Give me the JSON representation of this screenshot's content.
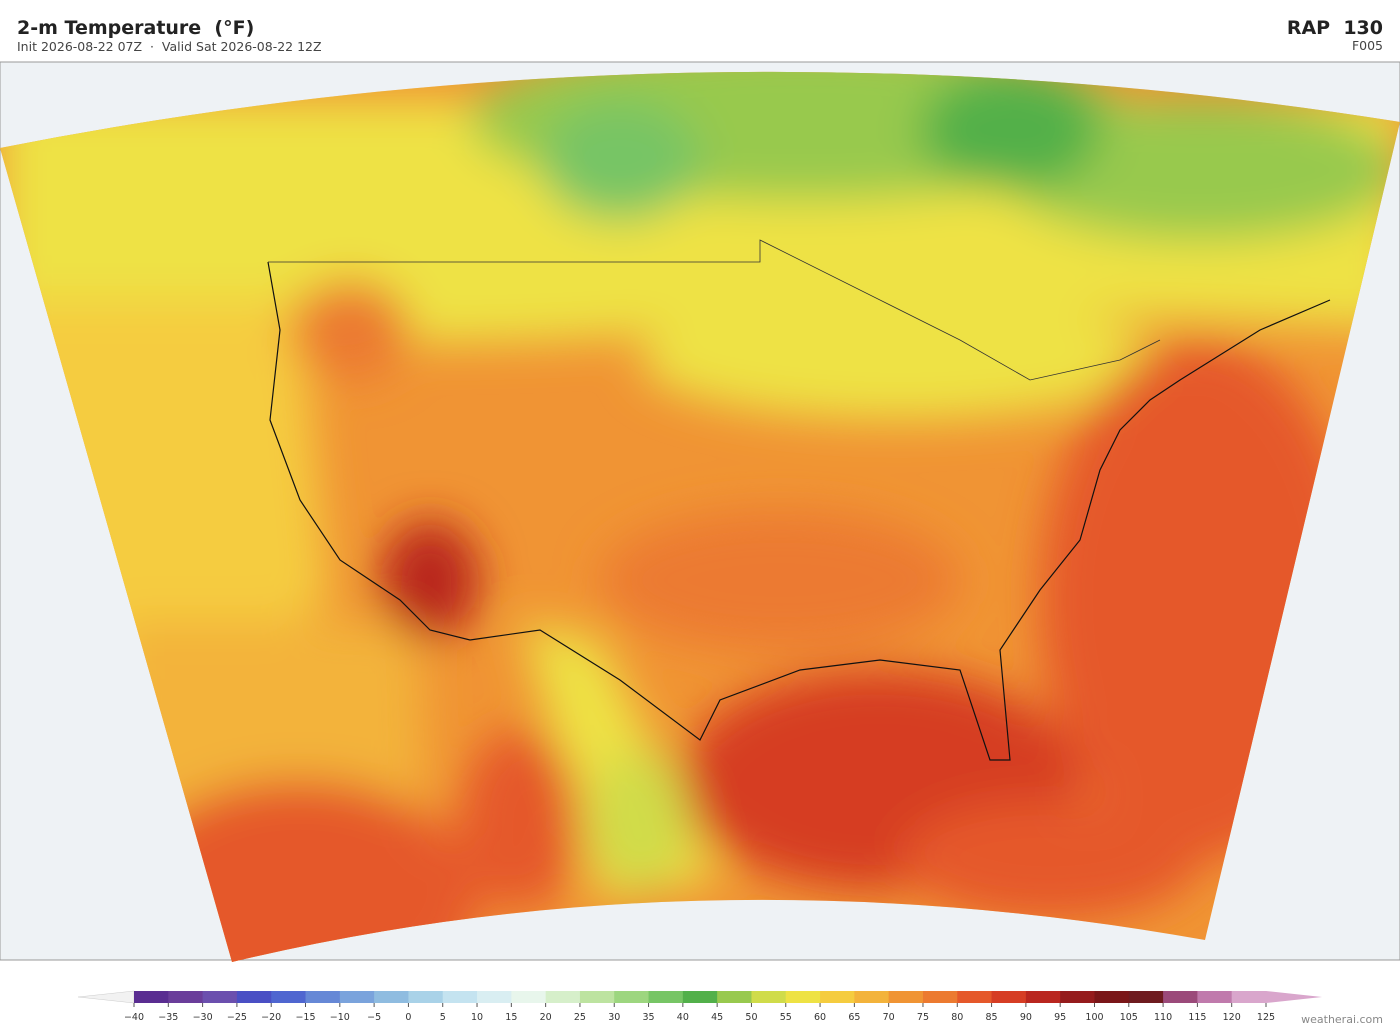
{
  "header": {
    "title": "2-m Temperature  (°F)",
    "subtitle": "Init 2026-08-22 07Z  ·  Valid Sat 2026-08-22 12Z",
    "model": "RAP  130",
    "forecast_hour": "F005"
  },
  "colorbar": {
    "ticks": [
      {
        "value": -40,
        "label": "−40"
      },
      {
        "value": -35,
        "label": "−35"
      },
      {
        "value": -30,
        "label": "−30"
      },
      {
        "value": -25,
        "label": "−25"
      },
      {
        "value": -20,
        "label": "−20"
      },
      {
        "value": -15,
        "label": "−15"
      },
      {
        "value": -10,
        "label": "−10"
      },
      {
        "value": -5,
        "label": "−5"
      },
      0,
      5,
      10,
      15,
      20,
      25,
      30,
      35,
      40,
      45,
      50,
      55,
      60,
      65,
      70,
      75,
      80,
      85,
      90,
      95,
      100,
      105,
      110,
      115,
      120,
      125
    ],
    "colors": [
      "#5a2d91",
      "#6a3d9a",
      "#6b4fae",
      "#4a4fc4",
      "#4f66d0",
      "#6688d6",
      "#7aa3dc",
      "#8fbce0",
      "#a9d2e8",
      "#c4e3f0",
      "#d9eef2",
      "#e8f6ec",
      "#d6efca",
      "#bde3a0",
      "#9dd67f",
      "#77c565",
      "#52b04a",
      "#98c94e",
      "#d0dc4a",
      "#eee244",
      "#f5cc3f",
      "#f3b33b",
      "#f09434",
      "#ec7a30",
      "#e5582a",
      "#d63d24",
      "#b9261f",
      "#951b1c",
      "#7a1618",
      "#6e1b1f",
      "#9b4a7a",
      "#c07aac",
      "#d9a6cc"
    ],
    "under_color": "#f2f2f2",
    "over_color": "#d9a6cc"
  },
  "credit": "weatherai.com"
}
